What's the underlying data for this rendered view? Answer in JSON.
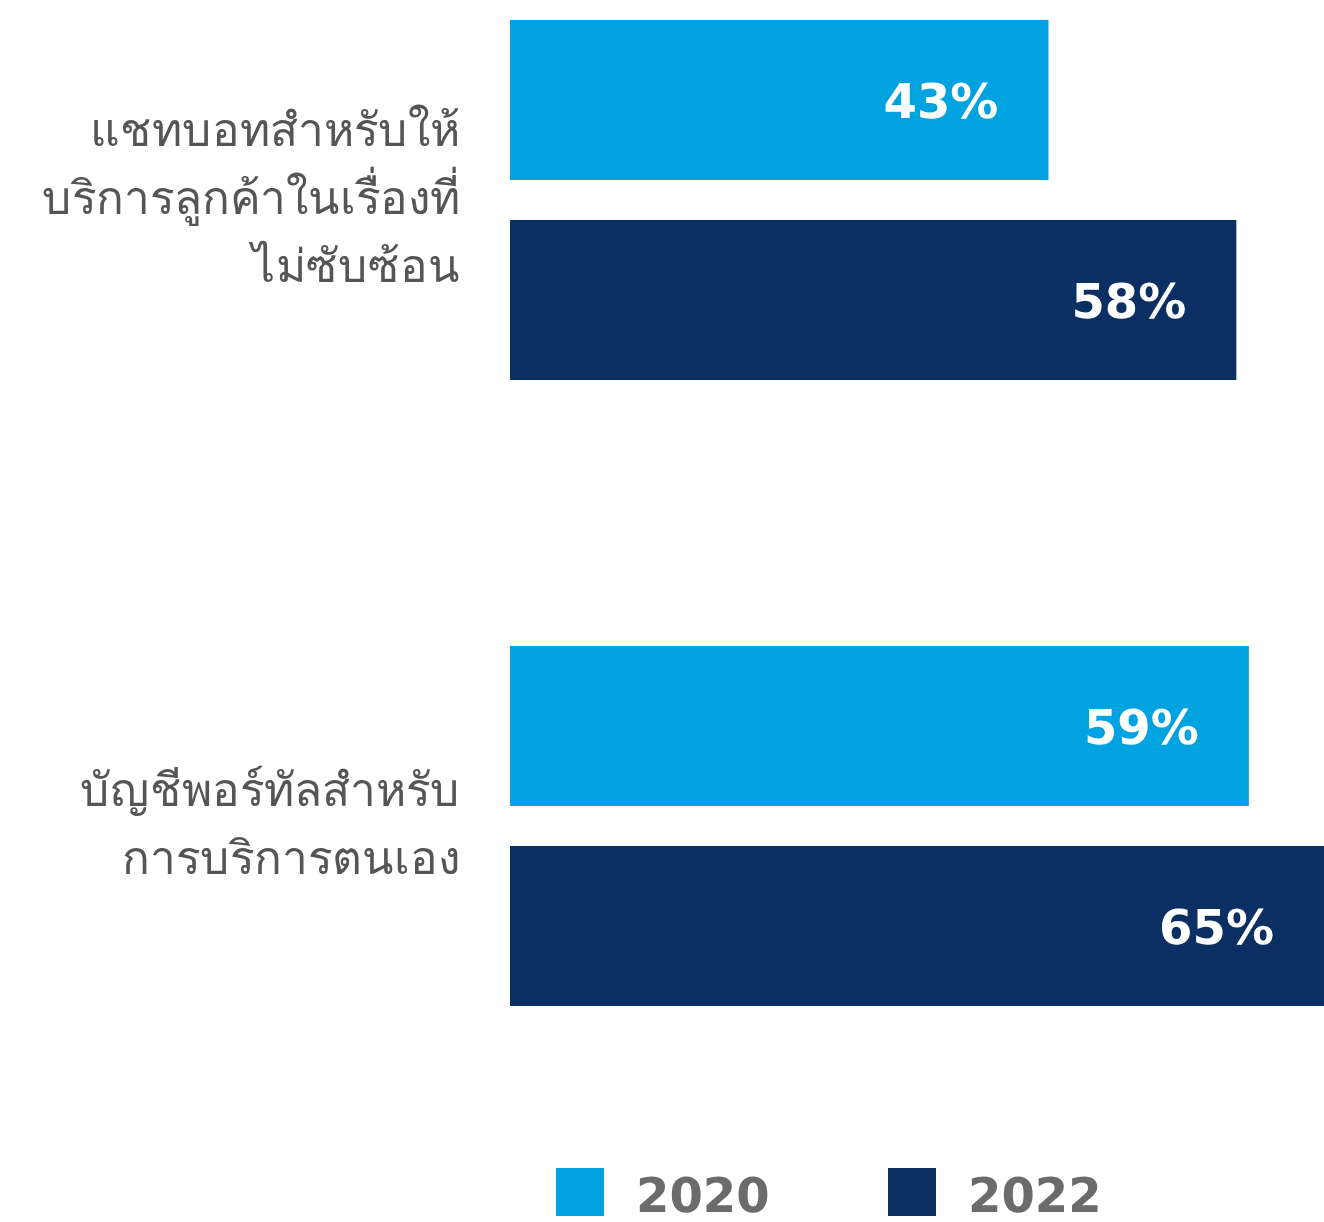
{
  "chart_data": {
    "type": "bar",
    "orientation": "horizontal",
    "categories": [
      "แชทบอทสำหรับให้บริการลูกค้าในเรื่องที่ไม่ซับซ้อน",
      "บัญชีพอร์ทัลสำหรับการบริการตนเอง"
    ],
    "series": [
      {
        "name": "2020",
        "color": "#00a3e0",
        "values": [
          43,
          59
        ],
        "value_labels": [
          "43%",
          "59%"
        ]
      },
      {
        "name": "2022",
        "color": "#0b2f63",
        "values": [
          58,
          65
        ],
        "value_labels": [
          "58%",
          "65%"
        ]
      }
    ],
    "legend": "bottom"
  }
}
